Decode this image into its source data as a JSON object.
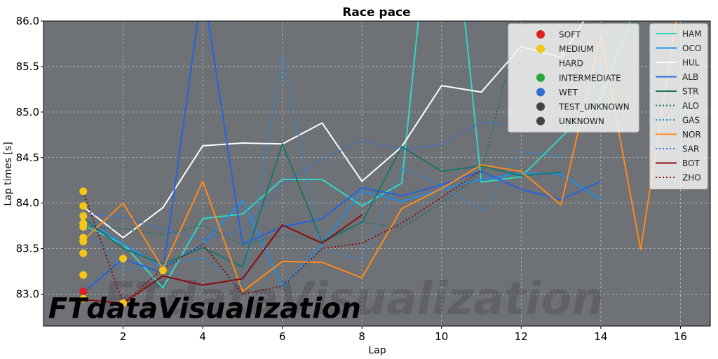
{
  "chart_data": {
    "type": "line",
    "title": "Race pace",
    "xlabel": "Lap",
    "ylabel": "Lap times [s]",
    "xlim": [
      0.0,
      16.75
    ],
    "ylim": [
      82.65,
      86.0
    ],
    "xticks": [
      2,
      4,
      6,
      8,
      10,
      12,
      14,
      16
    ],
    "yticks": [
      83.0,
      83.5,
      84.0,
      84.5,
      85.0,
      85.5,
      86.0
    ],
    "ytick_labels": [
      "83.0",
      "83.5",
      "84.0",
      "84.5",
      "85.0",
      "85.5",
      "86.0"
    ],
    "grid": true,
    "background": "#6e7176",
    "compound_legend": [
      {
        "label": "SOFT",
        "color": "#da2020"
      },
      {
        "label": "MEDIUM",
        "color": "#f5c518"
      },
      {
        "label": "HARD",
        "color": "#e0e0e0"
      },
      {
        "label": "INTERMEDIATE",
        "color": "#27a73a"
      },
      {
        "label": "WET",
        "color": "#2c6fd0"
      },
      {
        "label": "TEST_UNKNOWN",
        "color": "#434343"
      },
      {
        "label": "UNKNOWN",
        "color": "#434343"
      }
    ],
    "series": [
      {
        "name": "HAM",
        "color": "#2fd8c8",
        "dash": "solid",
        "x": [
          1,
          2,
          3,
          4,
          5,
          6,
          7,
          8,
          9,
          10,
          11,
          12,
          13,
          14,
          15
        ],
        "y": [
          83.76,
          83.55,
          83.07,
          83.83,
          83.88,
          84.26,
          84.26,
          83.97,
          84.22,
          88.5,
          84.23,
          84.29,
          84.72,
          85.15,
          86.3
        ]
      },
      {
        "name": "OCO",
        "color": "#1e8fe8",
        "dash": "solid",
        "x": [
          1,
          2,
          3,
          4,
          5,
          6,
          7,
          8,
          9,
          10,
          11,
          12,
          13,
          14
        ],
        "y": [
          83.84,
          83.55,
          83.3,
          83.55,
          84.03,
          83.08,
          83.55,
          84.13,
          84.02,
          84.15,
          84.26,
          84.33,
          84.32,
          84.04
        ]
      },
      {
        "name": "HUL",
        "color": "#ffffff",
        "dash": "solid",
        "x": [
          1,
          2,
          3,
          4,
          5,
          6,
          7,
          8,
          9,
          10,
          11,
          12,
          13,
          14
        ],
        "y": [
          83.96,
          83.62,
          83.95,
          84.63,
          84.66,
          84.65,
          84.88,
          84.24,
          84.62,
          85.29,
          85.22,
          85.72,
          85.6,
          86.3
        ]
      },
      {
        "name": "ALB",
        "color": "#2563e0",
        "dash": "solid",
        "x": [
          1,
          2,
          3,
          4,
          5,
          6,
          7,
          8,
          9,
          10,
          11,
          12,
          13,
          14
        ],
        "y": [
          83.02,
          83.39,
          83.23,
          86.4,
          83.55,
          83.74,
          83.83,
          84.17,
          84.08,
          84.2,
          84.35,
          84.15,
          84.04,
          84.24
        ]
      },
      {
        "name": "STR",
        "color": "#1a7568",
        "dash": "solid",
        "x": [
          1,
          2,
          3,
          4,
          5,
          6,
          7,
          8,
          9,
          10,
          11,
          12,
          13
        ],
        "y": [
          83.84,
          83.5,
          83.33,
          83.51,
          83.3,
          84.65,
          83.57,
          83.79,
          84.62,
          84.35,
          84.41,
          84.3,
          84.34
        ]
      },
      {
        "name": "ALO",
        "color": "#1a7568",
        "dash": "dotted",
        "x": [
          1,
          2,
          3,
          4,
          5,
          6,
          7,
          8,
          9,
          10,
          11,
          12
        ],
        "y": [
          83.74,
          83.72,
          83.65,
          83.76,
          83.54,
          83.65,
          83.59,
          83.79,
          83.73,
          84.0,
          84.33,
          86.05
        ]
      },
      {
        "name": "GAS",
        "color": "#1e8fe8",
        "dash": "dotted",
        "x": [
          1,
          2,
          3,
          4,
          5,
          6,
          7,
          8,
          9,
          10,
          11,
          12,
          13
        ],
        "y": [
          83.74,
          83.27,
          83.32,
          83.4,
          83.07,
          85.6,
          83.49,
          83.38,
          84.39,
          84.19,
          83.92,
          84.57,
          84.51
        ]
      },
      {
        "name": "NOR",
        "color": "#ff8a1a",
        "dash": "solid",
        "x": [
          1,
          2,
          3,
          4,
          5,
          6,
          7,
          8,
          9,
          10,
          11,
          12,
          13,
          14,
          15,
          16
        ],
        "y": [
          83.59,
          84.0,
          83.28,
          84.24,
          83.03,
          83.36,
          83.35,
          83.18,
          83.94,
          84.16,
          84.42,
          84.35,
          83.98,
          85.85,
          83.49,
          86.3
        ]
      },
      {
        "name": "SAR",
        "color": "#2b74e8",
        "dash": "dotted",
        "x": [
          1,
          2,
          3,
          4,
          5,
          6,
          7,
          8,
          9,
          10,
          11,
          12,
          13,
          14
        ],
        "y": [
          83.88,
          83.85,
          83.72,
          83.6,
          83.7,
          84.2,
          84.48,
          84.69,
          84.59,
          84.64,
          84.89,
          84.86,
          84.97,
          85.2
        ]
      },
      {
        "name": "BOT",
        "color": "#8a0c0c",
        "dash": "solid",
        "x": [
          1,
          2,
          3,
          4,
          5,
          6,
          7,
          8
        ],
        "y": [
          82.94,
          82.9,
          83.2,
          83.1,
          83.17,
          83.76,
          83.56,
          83.87
        ]
      },
      {
        "name": "ZHO",
        "color": "#8a0c0c",
        "dash": "dotted",
        "x": [
          1,
          2,
          3,
          4,
          5,
          6,
          7,
          8,
          9,
          10,
          11
        ],
        "y": [
          84.12,
          82.9,
          83.28,
          83.55,
          83.0,
          83.09,
          83.5,
          83.56,
          83.78,
          84.06,
          84.36
        ]
      }
    ],
    "compound_points": [
      {
        "x": 1,
        "y": 84.13,
        "compound": "MEDIUM"
      },
      {
        "x": 1,
        "y": 83.97,
        "compound": "MEDIUM"
      },
      {
        "x": 1,
        "y": 83.86,
        "compound": "MEDIUM"
      },
      {
        "x": 1,
        "y": 83.78,
        "compound": "MEDIUM"
      },
      {
        "x": 1,
        "y": 83.74,
        "compound": "MEDIUM"
      },
      {
        "x": 1,
        "y": 83.62,
        "compound": "MEDIUM"
      },
      {
        "x": 1,
        "y": 83.58,
        "compound": "MEDIUM"
      },
      {
        "x": 1,
        "y": 83.45,
        "compound": "MEDIUM"
      },
      {
        "x": 1,
        "y": 83.21,
        "compound": "MEDIUM"
      },
      {
        "x": 1,
        "y": 83.03,
        "compound": "SOFT"
      },
      {
        "x": 1,
        "y": 82.95,
        "compound": "MEDIUM"
      },
      {
        "x": 2,
        "y": 83.39,
        "compound": "MEDIUM"
      },
      {
        "x": 2,
        "y": 82.9,
        "compound": "MEDIUM"
      },
      {
        "x": 3,
        "y": 83.26,
        "compound": "MEDIUM"
      }
    ],
    "watermark": "FTdataVisualization"
  }
}
